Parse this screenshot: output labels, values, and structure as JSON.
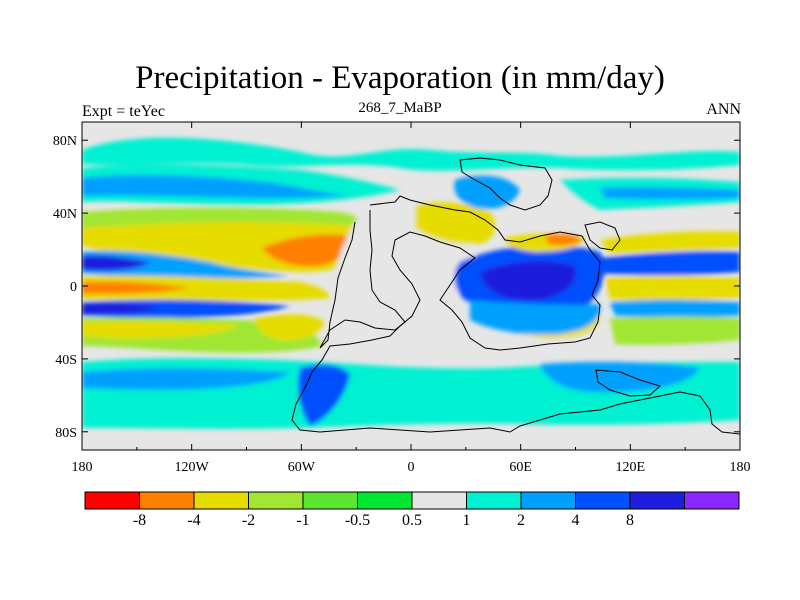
{
  "title": "Precipitation - Evaporation (in mm/day)",
  "subtitle": "268_7_MaBP",
  "left_label": "Expt = teYec",
  "right_label": "ANN",
  "map": {
    "lon_ticks": [
      "180",
      "120W",
      "60W",
      "0",
      "60E",
      "120E",
      "180"
    ],
    "lat_ticks": [
      "80N",
      "40N",
      "0",
      "40S",
      "80S"
    ],
    "background_color": "#e6e6e6"
  },
  "colorbar": {
    "colors": [
      "#ff0000",
      "#ff8000",
      "#e6dc00",
      "#a0e632",
      "#5ae632",
      "#00e632",
      "#e6e6e6",
      "#00f0d2",
      "#00a0ff",
      "#0050ff",
      "#1e1edc",
      "#8c28ff"
    ],
    "labels": [
      "-8",
      "-4",
      "-2",
      "-1",
      "-0.5",
      "0.5",
      "1",
      "2",
      "4",
      "8"
    ]
  }
}
